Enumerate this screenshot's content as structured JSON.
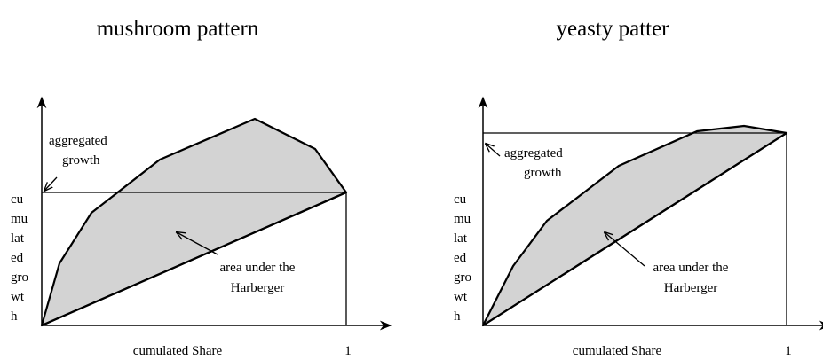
{
  "panels": [
    {
      "title": "mushroom pattern",
      "aggregated_label": [
        "aggregated",
        "growth"
      ],
      "y_axis_label": [
        "cu",
        "mu",
        "lat",
        "ed",
        "gro",
        "wt",
        "h"
      ],
      "area_label": [
        "area under the",
        "Harberger"
      ],
      "x_axis_label": "cumulated Share",
      "x_end_label": "1"
    },
    {
      "title": "yeasty patter",
      "aggregated_label": [
        "aggregated",
        "growth"
      ],
      "y_axis_label": [
        "cu",
        "mu",
        "lat",
        "ed",
        "gro",
        "wt",
        "h"
      ],
      "area_label": [
        "area under the",
        "Harberger"
      ],
      "x_axis_label": "cumulated Share",
      "x_end_label": "1"
    }
  ]
}
